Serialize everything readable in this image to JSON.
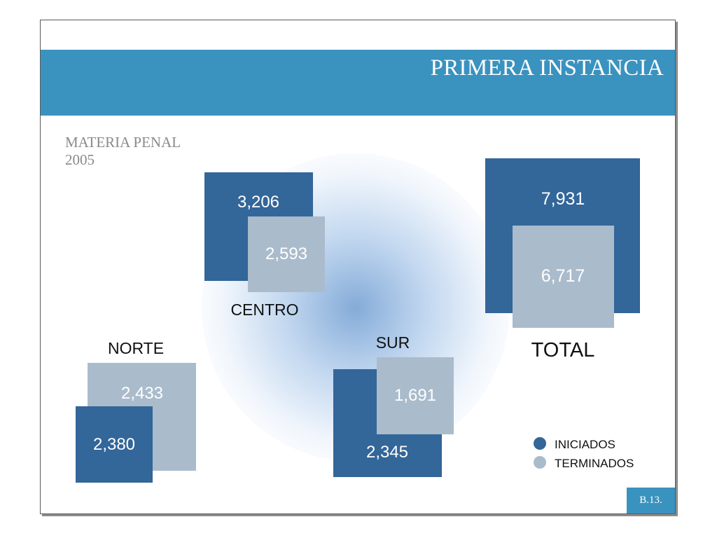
{
  "header": {
    "title": "PRIMERA INSTANCIA"
  },
  "subtitle": {
    "line1": "MATERIA PENAL",
    "line2": "2005"
  },
  "page": {
    "number": "B.13."
  },
  "colors": {
    "band": "#3a92bf",
    "iniciados": "#336699",
    "terminados": "#aabbcc"
  },
  "chart_data": {
    "type": "bar",
    "title": "",
    "series": [
      {
        "name": "INICIADOS",
        "color": "#336699"
      },
      {
        "name": "TERMINADOS",
        "color": "#aabbcc"
      }
    ],
    "groups": [
      {
        "label": "CENTRO",
        "values": [
          "3,206",
          "2,593"
        ],
        "iniciados": 3206,
        "terminados": 2593
      },
      {
        "label": "NORTE",
        "values": [
          "2,380",
          "2,433"
        ],
        "iniciados": 2380,
        "terminados": 2433
      },
      {
        "label": "SUR",
        "values": [
          "2,345",
          "1,691"
        ],
        "iniciados": 2345,
        "terminados": 1691
      },
      {
        "label": "TOTAL",
        "values": [
          "7,931",
          "6,717"
        ],
        "iniciados": 7931,
        "terminados": 6717
      }
    ],
    "legend": {
      "position": "bottom-right",
      "items": [
        "INICIADOS",
        "TERMINADOS"
      ]
    }
  }
}
